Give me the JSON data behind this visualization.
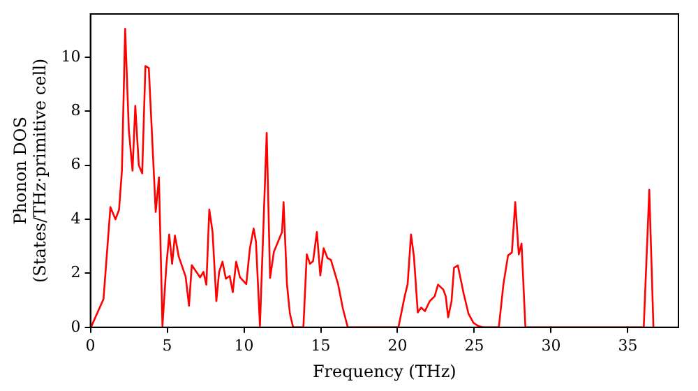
{
  "chart_data": {
    "type": "line",
    "xlabel": "Frequency (THz)",
    "ylabel": "Phonon DOS\n(States/THz·primitive cell)",
    "xlim": [
      0,
      38.3
    ],
    "ylim": [
      0,
      11.6
    ],
    "xticks": [
      0,
      5,
      10,
      15,
      20,
      25,
      30,
      35
    ],
    "yticks": [
      0,
      2,
      4,
      6,
      8,
      10
    ],
    "grid": false,
    "legend": false,
    "marker": "none",
    "line_style": "solid",
    "series": [
      {
        "color": "#ff0000",
        "x": [
          0,
          0.07,
          0.85,
          1.3,
          1.63,
          1.86,
          2.05,
          2.26,
          2.5,
          2.74,
          2.92,
          3.15,
          3.37,
          3.58,
          3.8,
          4.25,
          4.46,
          4.69,
          4.94,
          5.13,
          5.32,
          5.5,
          5.75,
          6.2,
          6.42,
          6.6,
          7.14,
          7.36,
          7.55,
          7.74,
          7.95,
          8.2,
          8.38,
          8.6,
          8.82,
          9.07,
          9.27,
          9.49,
          9.74,
          10.15,
          10.38,
          10.63,
          10.78,
          11.04,
          11.48,
          11.7,
          11.95,
          12.48,
          12.58,
          12.8,
          12.99,
          13.2,
          13.87,
          14.09,
          14.3,
          14.5,
          14.75,
          14.97,
          15.19,
          15.44,
          15.66,
          16.13,
          16.44,
          16.76,
          20.06,
          20.47,
          20.66,
          20.88,
          21.07,
          21.32,
          21.54,
          21.79,
          22.1,
          22.42,
          22.64,
          22.98,
          23.14,
          23.3,
          23.52,
          23.68,
          23.93,
          24.31,
          24.62,
          24.94,
          25.25,
          25.57,
          26.6,
          26.9,
          27.2,
          27.45,
          27.67,
          27.9,
          28.08,
          28.33,
          36.04,
          36.4,
          36.67
        ],
        "values": [
          0,
          0.05,
          1.05,
          4.45,
          4.0,
          4.35,
          5.8,
          11.05,
          7.3,
          5.8,
          8.2,
          6.0,
          5.7,
          9.67,
          9.6,
          4.27,
          5.55,
          0.05,
          2.25,
          3.44,
          2.35,
          3.4,
          2.62,
          1.88,
          0.8,
          2.3,
          1.85,
          2.05,
          1.58,
          4.36,
          3.55,
          0.97,
          2.05,
          2.43,
          1.8,
          1.9,
          1.3,
          2.43,
          1.85,
          1.6,
          2.9,
          3.66,
          3.17,
          0.05,
          7.2,
          1.83,
          2.8,
          3.53,
          4.63,
          1.6,
          0.51,
          0,
          0,
          2.7,
          2.35,
          2.45,
          3.53,
          1.92,
          2.93,
          2.56,
          2.5,
          1.6,
          0.7,
          0,
          0,
          1.15,
          1.6,
          3.44,
          2.62,
          0.55,
          0.73,
          0.6,
          0.97,
          1.15,
          1.58,
          1.4,
          1.15,
          0.37,
          0.97,
          2.2,
          2.29,
          1.25,
          0.51,
          0.17,
          0.05,
          0,
          0,
          1.6,
          2.66,
          2.77,
          4.63,
          2.7,
          3.1,
          0,
          0,
          5.09,
          0
        ]
      }
    ]
  }
}
